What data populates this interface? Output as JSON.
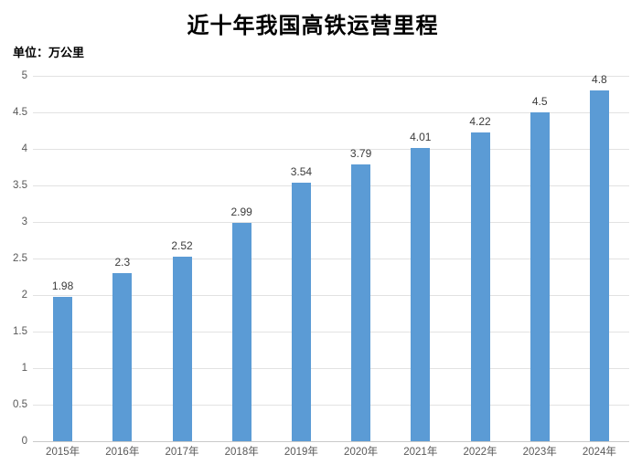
{
  "title": "近十年我国高铁运营里程",
  "unit_label": "单位：万公里",
  "colors": {
    "bar": "#5B9BD5",
    "gridline": "#E2E2E2",
    "axis_line": "#C9C9C9",
    "tick_label": "#595959",
    "data_label": "#3B3B3B",
    "title_color": "#000000"
  },
  "chart_data": {
    "type": "bar",
    "title": "近十年我国高铁运营里程",
    "subtitle": "单位：万公里",
    "unit": "万公里",
    "categories": [
      "2015年",
      "2016年",
      "2017年",
      "2018年",
      "2019年",
      "2020年",
      "2021年",
      "2022年",
      "2023年",
      "2024年"
    ],
    "values": [
      1.98,
      2.3,
      2.52,
      2.99,
      3.54,
      3.79,
      4.01,
      4.22,
      4.5,
      4.8
    ],
    "data_labels": [
      "1.98",
      "2.3",
      "2.52",
      "2.99",
      "3.54",
      "3.79",
      "4.01",
      "4.22",
      "4.5",
      "4.8"
    ],
    "xlabel": "",
    "ylabel": "",
    "ylim": [
      0,
      5
    ],
    "ytick_step": 0.5,
    "yticks": [
      "5",
      "4.5",
      "4",
      "3.5",
      "3",
      "2.5",
      "2",
      "1.5",
      "1",
      "0.5",
      "0"
    ],
    "grid": true,
    "legend_position": "none"
  }
}
